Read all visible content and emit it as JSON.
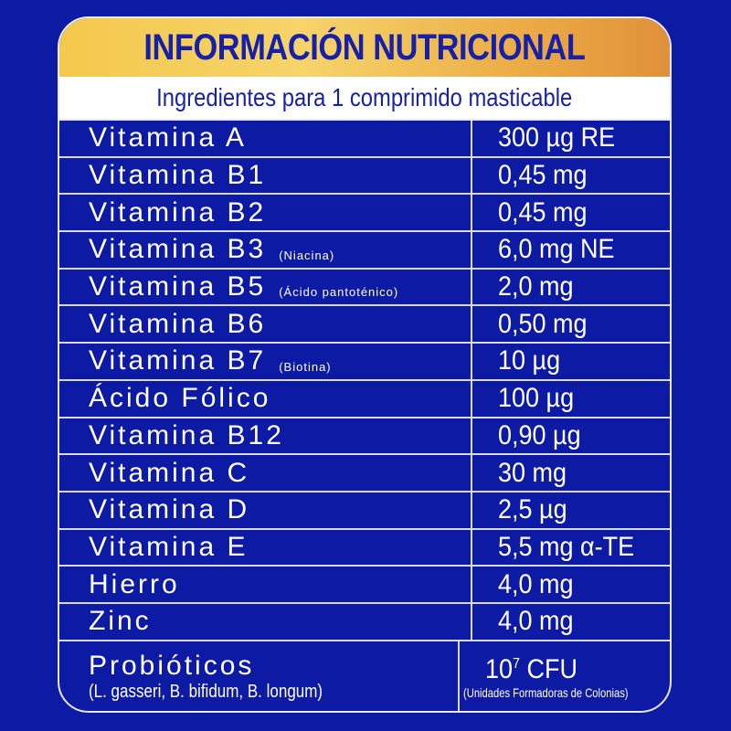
{
  "title": "INFORMACIÓN NUTRICIONAL",
  "subtitle": "Ingredientes para 1 comprimido masticable",
  "colors": {
    "background": "#0d1aa3",
    "title_gold": "#f3c84c",
    "text_blue": "#1620a8"
  },
  "rows": [
    {
      "name": "Vitamina A",
      "note": "",
      "value": "300 µg RE"
    },
    {
      "name": "Vitamina B1",
      "note": "",
      "value": "0,45 mg"
    },
    {
      "name": "Vitamina B2",
      "note": "",
      "value": "0,45 mg"
    },
    {
      "name": "Vitamina B3",
      "note": "(Niacina)",
      "value": "6,0 mg NE"
    },
    {
      "name": "Vitamina B5",
      "note": "(Ácido pantoténico)",
      "value": "2,0 mg"
    },
    {
      "name": "Vitamina B6",
      "note": "",
      "value": "0,50 mg"
    },
    {
      "name": "Vitamina B7",
      "note": "(Biotina)",
      "value": "10 µg"
    },
    {
      "name": "Ácido Fólico",
      "note": "",
      "value": "100 µg"
    },
    {
      "name": "Vitamina B12",
      "note": "",
      "value": "0,90 µg"
    },
    {
      "name": "Vitamina C",
      "note": "",
      "value": "30 mg"
    },
    {
      "name": "Vitamina D",
      "note": "",
      "value": "2,5 µg"
    },
    {
      "name": "Vitamina E",
      "note": "",
      "value": "5,5 mg α-TE"
    },
    {
      "name": "Hierro",
      "note": "",
      "value": "4,0 mg"
    },
    {
      "name": "Zinc",
      "note": "",
      "value": "4,0 mg"
    }
  ],
  "probiotics": {
    "name": "Probióticos",
    "strains": "(L. gasseri, B. bifidum, B. longum)",
    "value_base": "10",
    "value_exp": "7",
    "value_unit": " CFU",
    "value_note": "(Unidades Formadoras de Colonias)"
  }
}
